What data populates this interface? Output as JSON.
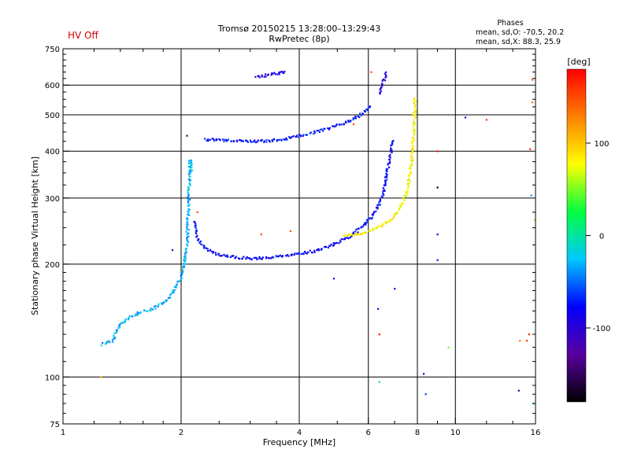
{
  "status": {
    "hv_label": "HV Off",
    "hv_color": "#d40000"
  },
  "chart_data": {
    "type": "scatter",
    "title": "Tromsø 20150215 13:28:00–13:29:43",
    "subtitle": "RwPretec (8p)",
    "xlabel": "Frequency [MHz]",
    "ylabel": "Stationary phase Virtual Height [km]",
    "x_scale": "log",
    "y_scale": "log",
    "xlim": [
      1,
      16
    ],
    "ylim": [
      75,
      750
    ],
    "x_ticks": [
      {
        "v": 1,
        "label": "1"
      },
      {
        "v": 2,
        "label": "2"
      },
      {
        "v": 4,
        "label": "4"
      },
      {
        "v": 6,
        "label": "6"
      },
      {
        "v": 8,
        "label": "8"
      },
      {
        "v": 10,
        "label": "10"
      },
      {
        "v": 16,
        "label": "16"
      }
    ],
    "y_ticks": [
      {
        "v": 75,
        "label": "75"
      },
      {
        "v": 100,
        "label": "100"
      },
      {
        "v": 200,
        "label": "200"
      },
      {
        "v": 300,
        "label": "300"
      },
      {
        "v": 400,
        "label": "400"
      },
      {
        "v": 500,
        "label": "500"
      },
      {
        "v": 600,
        "label": "600"
      },
      {
        "v": 750,
        "label": "750"
      }
    ],
    "x_gridlines": [
      2,
      4,
      6,
      8,
      10
    ],
    "y_gridlines": [
      100,
      200,
      300,
      400,
      500,
      600
    ],
    "grid": true,
    "stats": {
      "title": "Phases",
      "line_o": "mean, sd,O: -70.5, 20.2",
      "line_x": "mean, sd,X:  88.3, 25.9"
    },
    "colorbar": {
      "label": "[deg]",
      "range": [
        -180,
        180
      ],
      "ticks": [
        {
          "v": 100,
          "label": "100"
        },
        {
          "v": 0,
          "label": "0"
        },
        {
          "v": -100,
          "label": "-100"
        }
      ],
      "colors": [
        "#000000",
        "#5a00a0",
        "#0000ff",
        "#00c8ff",
        "#00ff40",
        "#ffff00",
        "#ff8000",
        "#ff0000"
      ]
    },
    "series": [
      {
        "kind": "o_trace_low",
        "points": [
          [
            1.26,
            122
          ],
          [
            1.33,
            125
          ],
          [
            1.4,
            138
          ],
          [
            1.45,
            142
          ],
          [
            1.5,
            145
          ],
          [
            1.55,
            148
          ],
          [
            1.6,
            150
          ],
          [
            1.65,
            150
          ],
          [
            1.7,
            152
          ],
          [
            1.75,
            155
          ],
          [
            1.8,
            158
          ],
          [
            1.85,
            162
          ],
          [
            1.9,
            168
          ],
          [
            1.95,
            175
          ],
          [
            2.0,
            185
          ],
          [
            2.03,
            195
          ],
          [
            2.05,
            210
          ],
          [
            2.07,
            230
          ],
          [
            2.08,
            260
          ],
          [
            2.09,
            300
          ],
          [
            2.1,
            340
          ],
          [
            2.11,
            380
          ],
          [
            2.12,
            350
          ]
        ],
        "phase": -30
      },
      {
        "kind": "o_trace_f2",
        "points": [
          [
            2.15,
            260
          ],
          [
            2.2,
            235
          ],
          [
            2.3,
            220
          ],
          [
            2.5,
            212
          ],
          [
            2.8,
            208
          ],
          [
            3.1,
            207
          ],
          [
            3.5,
            209
          ],
          [
            3.9,
            212
          ],
          [
            4.3,
            216
          ],
          [
            4.7,
            222
          ],
          [
            5.0,
            228
          ],
          [
            5.3,
            235
          ],
          [
            5.6,
            245
          ],
          [
            5.9,
            258
          ],
          [
            6.2,
            272
          ],
          [
            6.4,
            290
          ],
          [
            6.55,
            310
          ],
          [
            6.65,
            340
          ],
          [
            6.75,
            370
          ],
          [
            6.85,
            400
          ],
          [
            6.95,
            430
          ]
        ],
        "phase": -80
      },
      {
        "kind": "o_trace_upper",
        "points": [
          [
            2.3,
            430
          ],
          [
            2.5,
            428
          ],
          [
            2.8,
            425
          ],
          [
            3.2,
            425
          ],
          [
            3.6,
            430
          ],
          [
            4.0,
            440
          ],
          [
            4.4,
            450
          ],
          [
            4.8,
            462
          ],
          [
            5.2,
            475
          ],
          [
            5.6,
            492
          ],
          [
            5.9,
            510
          ],
          [
            6.1,
            530
          ]
        ],
        "phase": -75
      },
      {
        "kind": "x_trace",
        "points": [
          [
            5.2,
            238
          ],
          [
            5.6,
            240
          ],
          [
            6.0,
            245
          ],
          [
            6.4,
            252
          ],
          [
            6.8,
            262
          ],
          [
            7.1,
            275
          ],
          [
            7.35,
            292
          ],
          [
            7.5,
            310
          ],
          [
            7.6,
            335
          ],
          [
            7.7,
            360
          ],
          [
            7.75,
            390
          ],
          [
            7.8,
            420
          ],
          [
            7.85,
            460
          ],
          [
            7.88,
            520
          ],
          [
            7.9,
            560
          ]
        ],
        "phase": 80
      },
      {
        "kind": "upper_echo",
        "points": [
          [
            3.1,
            630
          ],
          [
            3.3,
            638
          ],
          [
            3.5,
            645
          ],
          [
            3.7,
            650
          ]
        ],
        "phase": -95
      },
      {
        "kind": "high_echo",
        "points": [
          [
            6.4,
            570
          ],
          [
            6.5,
            600
          ],
          [
            6.6,
            630
          ],
          [
            6.7,
            650
          ]
        ],
        "phase": -95
      }
    ],
    "scatter_points": [
      [
        1.25,
        100,
        110
      ],
      [
        1.9,
        218,
        -110
      ],
      [
        2.07,
        440,
        -150
      ],
      [
        2.2,
        275,
        150
      ],
      [
        3.2,
        240,
        150
      ],
      [
        3.8,
        245,
        150
      ],
      [
        4.9,
        183,
        -100
      ],
      [
        5.5,
        472,
        150
      ],
      [
        6.1,
        650,
        150
      ],
      [
        6.35,
        152,
        -100
      ],
      [
        6.4,
        130,
        170
      ],
      [
        6.4,
        97,
        -10
      ],
      [
        7.0,
        172,
        -100
      ],
      [
        8.3,
        102,
        -80
      ],
      [
        8.4,
        90,
        -60
      ],
      [
        9.0,
        205,
        -100
      ],
      [
        9.0,
        240,
        -100
      ],
      [
        9.0,
        320,
        -180
      ],
      [
        9.0,
        400,
        170
      ],
      [
        9.6,
        120,
        50
      ],
      [
        10.6,
        492,
        -100
      ],
      [
        12.0,
        485,
        160
      ],
      [
        14.5,
        92,
        -110
      ],
      [
        14.6,
        125,
        130
      ],
      [
        15.2,
        125,
        160
      ],
      [
        15.4,
        130,
        170
      ],
      [
        15.5,
        405,
        160
      ],
      [
        15.6,
        305,
        -40
      ],
      [
        15.7,
        540,
        140
      ],
      [
        15.7,
        620,
        140
      ],
      [
        15.8,
        85,
        20
      ],
      [
        15.9,
        262,
        60
      ]
    ]
  }
}
